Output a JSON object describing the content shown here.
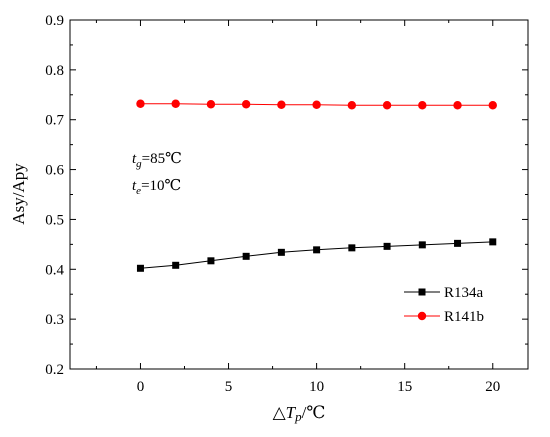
{
  "chart_data": {
    "type": "line",
    "xlabel": "△Tp/℃",
    "xlabel_parts": {
      "prefix": "△",
      "var": "T",
      "sub": "p",
      "unit": "/℃"
    },
    "ylabel": "Asy/Apy",
    "xlim": [
      -4,
      22
    ],
    "ylim": [
      0.2,
      0.9
    ],
    "xticks": [
      0,
      5,
      10,
      15,
      20
    ],
    "yticks": [
      0.2,
      0.3,
      0.4,
      0.5,
      0.6,
      0.7,
      0.8,
      0.9
    ],
    "xtick_labels": [
      "0",
      "5",
      "10",
      "15",
      "20"
    ],
    "ytick_labels": [
      "0.2",
      "0.3",
      "0.4",
      "0.5",
      "0.6",
      "0.7",
      "0.8",
      "0.9"
    ],
    "grid": false,
    "legend_position": "bottom-right",
    "x": [
      0,
      2,
      4,
      6,
      8,
      10,
      12,
      14,
      16,
      18,
      20
    ],
    "series": [
      {
        "name": "R134a",
        "marker": "square",
        "color": "#000000",
        "values": [
          0.402,
          0.408,
          0.417,
          0.426,
          0.434,
          0.439,
          0.443,
          0.446,
          0.449,
          0.452,
          0.455
        ]
      },
      {
        "name": "R141b",
        "marker": "circle",
        "color": "#ff0000",
        "values": [
          0.732,
          0.732,
          0.731,
          0.731,
          0.73,
          0.73,
          0.729,
          0.729,
          0.729,
          0.729,
          0.729
        ]
      }
    ],
    "annotations": [
      {
        "var": "t",
        "sub": "g",
        "text": "=85℃"
      },
      {
        "var": "t",
        "sub": "e",
        "text": "=10℃"
      }
    ]
  }
}
